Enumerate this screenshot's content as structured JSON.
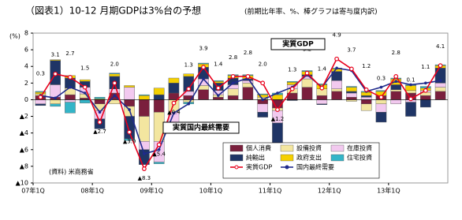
{
  "chart_data": {
    "type": "stacked-bar-line",
    "title": "（図表1）10-12 月期GDPは3%台の予想",
    "subtitle": "(前期比年率、%、棒グラフは寄与度内訳)",
    "y_label": "(%)",
    "note": "(資料) 米商務省",
    "annotations": [
      "実質GDP",
      "実質国内最終需要"
    ],
    "categories": [
      "07年1Q",
      null,
      null,
      null,
      "08年1Q",
      null,
      null,
      null,
      "09年1Q",
      null,
      null,
      null,
      "10年1Q",
      null,
      null,
      null,
      "11年1Q",
      null,
      null,
      null,
      "12年1Q",
      null,
      null,
      null,
      "13年1Q",
      null,
      null,
      null
    ],
    "ylim": [
      -10,
      8
    ],
    "yticks": [
      {
        "value": -10,
        "label": "▲10"
      },
      {
        "value": -8,
        "label": "▲8"
      },
      {
        "value": -6,
        "label": "▲6"
      },
      {
        "value": -4,
        "label": "▲4"
      },
      {
        "value": -2,
        "label": "▲2"
      },
      0,
      2,
      4,
      6,
      8
    ],
    "series": [
      {
        "name": "個人消費",
        "kind": "bar",
        "color": "#7a1f3d",
        "values": [
          0.5,
          0.3,
          0.6,
          0.2,
          -0.5,
          0.8,
          -0.8,
          -2.0,
          -1.5,
          0.8,
          0.5,
          1.2,
          0.3,
          0.5,
          1.5,
          -0.5,
          -1.0,
          0.8,
          1.5,
          0.5,
          1.0,
          0.3,
          -0.5,
          0.5,
          1.0,
          0.8,
          0.5,
          1.0
        ]
      },
      {
        "name": "設備投資",
        "kind": "bar",
        "color": "#f3e6a0",
        "values": [
          0.2,
          -0.5,
          0.8,
          0.5,
          -0.8,
          -0.5,
          -1.2,
          -3.0,
          -3.5,
          -1.5,
          -0.3,
          0.5,
          0.3,
          0.8,
          0.5,
          0.3,
          -0.3,
          0.5,
          1.0,
          0.8,
          0.3,
          -0.2,
          -0.8,
          -0.5,
          0.2,
          0.3,
          0.4,
          0.5
        ]
      },
      {
        "name": "在庫投資",
        "kind": "bar",
        "color": "#f2c9ef",
        "values": [
          -0.5,
          1.5,
          -0.3,
          0.8,
          -1.0,
          0.5,
          1.5,
          -1.0,
          -2.5,
          -1.5,
          0.5,
          0.8,
          0.5,
          0.5,
          0.3,
          -1.0,
          -1.5,
          0.5,
          0.3,
          -0.5,
          1.0,
          0.5,
          0.3,
          -1.0,
          -0.5,
          -0.3,
          0.2,
          0.5
        ]
      },
      {
        "name": "純輸出",
        "kind": "bar",
        "color": "#1f3566",
        "values": [
          -0.2,
          2.9,
          1.2,
          0.7,
          -1.2,
          1.5,
          -2.7,
          -1.8,
          0.6,
          1.2,
          1.8,
          1.4,
          0.9,
          0.8,
          0.2,
          -0.6,
          -2.8,
          -0.1,
          0.2,
          -0.1,
          1.1,
          0.2,
          0.2,
          -1.2,
          0.6,
          -1.7,
          -0.9,
          1.8
        ]
      },
      {
        "name": "政府支出",
        "kind": "bar",
        "color": "#f5d000",
        "values": [
          0.2,
          0.1,
          0.3,
          0.2,
          0.1,
          0.3,
          0.2,
          0.5,
          0.8,
          0.6,
          0.3,
          0.4,
          0.2,
          0.3,
          0.4,
          0.3,
          0.6,
          0.3,
          0.4,
          0.5,
          0.3,
          0.5,
          0.4,
          0.5,
          0.7,
          0.6,
          0.3,
          0.3
        ]
      },
      {
        "name": "住宅投資",
        "kind": "bar",
        "color": "#33b5c8",
        "values": [
          0.1,
          -0.3,
          -1.3,
          -0.4,
          0.2,
          0.1,
          -0.2,
          0.1,
          -0.2,
          -0.4,
          -0.2,
          0.1,
          0.1,
          0.1,
          0.1,
          0.1,
          0.2,
          0.1,
          0.1,
          0.1,
          0.1,
          0.1,
          0.1,
          0.1,
          0.1,
          0.1,
          0.2,
          0.1
        ]
      },
      {
        "name": "実質GDP",
        "kind": "line",
        "color": "#e8001c",
        "values": [
          0.3,
          3.1,
          2.7,
          1.5,
          -2.7,
          2.0,
          -3.9,
          -8.3,
          -5.4,
          -0.4,
          1.3,
          3.9,
          1.4,
          2.8,
          2.8,
          2.0,
          -1.2,
          1.3,
          3.2,
          1.4,
          4.9,
          3.7,
          1.2,
          0.3,
          2.8,
          0.1,
          1.1,
          4.1
        ],
        "value_labels": [
          "0.3",
          "3.1",
          "2.7",
          "1.5",
          "▲2.7",
          "2.0",
          "▲3.9",
          "▲8.3",
          "▲5.4",
          "▲0.4",
          "1.3",
          "3.9",
          "1.4",
          "2.8",
          "2.8",
          "2.0",
          "▲1.2",
          "1.3",
          "3.2",
          "1.4",
          "4.9",
          "3.7",
          "1.2",
          "0.3",
          "2.8",
          "0.1",
          "1.1",
          "4.1"
        ]
      },
      {
        "name": "国内最終需要",
        "kind": "line",
        "color": "#1f2a8c",
        "values": [
          0.5,
          0.2,
          1.5,
          0.8,
          -1.5,
          0.5,
          -1.2,
          -6.5,
          -6.0,
          -1.6,
          -0.5,
          2.5,
          0.5,
          2.0,
          2.6,
          0.0,
          0.8,
          1.5,
          3.0,
          1.5,
          3.8,
          3.5,
          1.0,
          1.5,
          2.2,
          1.8,
          2.0,
          2.3
        ]
      }
    ]
  }
}
